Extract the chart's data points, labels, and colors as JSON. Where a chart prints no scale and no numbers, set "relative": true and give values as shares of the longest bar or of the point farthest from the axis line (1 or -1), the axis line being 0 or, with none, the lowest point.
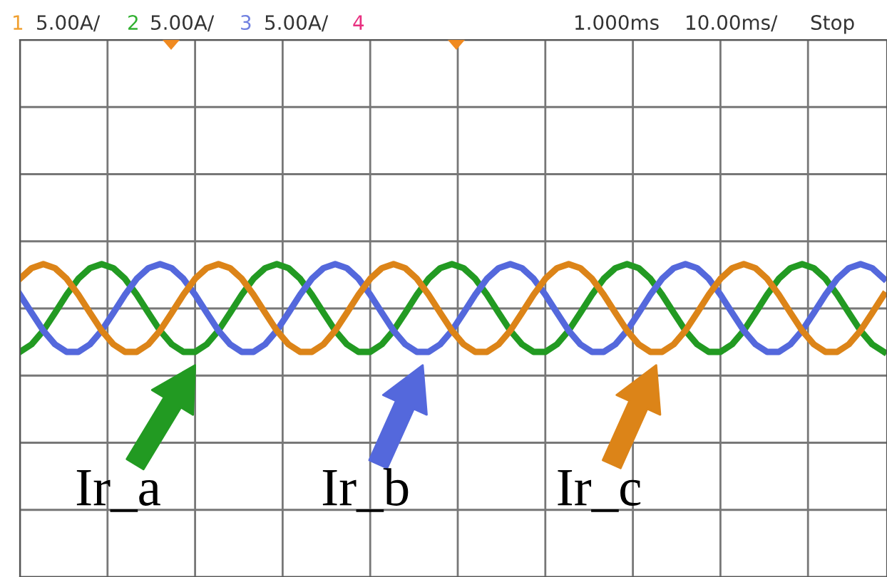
{
  "chart_data": {
    "type": "line",
    "relative": true,
    "grid": true,
    "legend": "bottom",
    "marker": "none",
    "line_style": "solid",
    "categories": [
      null,
      null,
      null,
      null,
      null,
      null,
      null,
      null,
      null,
      null,
      null,
      null,
      null,
      null,
      null,
      null,
      null,
      null,
      null,
      null,
      null,
      null,
      null,
      null,
      null,
      null,
      null,
      null,
      null,
      null,
      null,
      null,
      null,
      null,
      null,
      null,
      null,
      null,
      null,
      null,
      null,
      null,
      null,
      null,
      null,
      null,
      null,
      null,
      null,
      null,
      null,
      null,
      null,
      null,
      null,
      null,
      null,
      null,
      null,
      null,
      null,
      null,
      null,
      null,
      null,
      null,
      null,
      null,
      null,
      null,
      null,
      null,
      null,
      null,
      null
    ],
    "series": [
      {
        "name": "Ir_a",
        "color": "#229a22",
        "values": [
          -0.98,
          -0.81,
          -0.5,
          -0.1,
          0.31,
          0.67,
          0.91,
          1,
          0.91,
          0.67,
          0.31,
          -0.1,
          -0.5,
          -0.81,
          -0.98,
          -0.98,
          -0.81,
          -0.5,
          -0.1,
          0.31,
          0.67,
          0.91,
          1,
          0.91,
          0.67,
          0.31,
          -0.1,
          -0.5,
          -0.81,
          -0.98,
          -0.98,
          -0.81,
          -0.5,
          -0.1,
          0.31,
          0.67,
          0.91,
          1,
          0.91,
          0.67,
          0.31,
          -0.1,
          -0.5,
          -0.81,
          -0.98,
          -0.98,
          -0.81,
          -0.5,
          -0.1,
          0.31,
          0.67,
          0.91,
          1,
          0.91,
          0.67,
          0.31,
          -0.1,
          -0.5,
          -0.81,
          -0.98,
          -0.98,
          -0.81,
          -0.5,
          -0.1,
          0.31,
          0.67,
          0.91,
          1,
          0.91,
          0.67,
          0.31,
          -0.1,
          -0.5,
          -0.81,
          -0.98
        ]
      },
      {
        "name": "Ir_b",
        "color": "#5468dc",
        "values": [
          0.31,
          -0.1,
          -0.5,
          -0.81,
          -0.98,
          -0.98,
          -0.81,
          -0.5,
          -0.1,
          0.31,
          0.67,
          0.91,
          1,
          0.91,
          0.67,
          0.31,
          -0.1,
          -0.5,
          -0.81,
          -0.98,
          -0.98,
          -0.81,
          -0.5,
          -0.1,
          0.31,
          0.67,
          0.91,
          1,
          0.91,
          0.67,
          0.31,
          -0.1,
          -0.5,
          -0.81,
          -0.98,
          -0.98,
          -0.81,
          -0.5,
          -0.1,
          0.31,
          0.67,
          0.91,
          1,
          0.91,
          0.67,
          0.31,
          -0.1,
          -0.5,
          -0.81,
          -0.98,
          -0.98,
          -0.81,
          -0.5,
          -0.1,
          0.31,
          0.67,
          0.91,
          1,
          0.91,
          0.67,
          0.31,
          -0.1,
          -0.5,
          -0.81,
          -0.98,
          -0.98,
          -0.81,
          -0.5,
          -0.1,
          0.31,
          0.67,
          0.91,
          1,
          0.91,
          0.67
        ]
      },
      {
        "name": "Ir_c",
        "color": "#dc8418",
        "values": [
          0.67,
          0.91,
          1,
          0.91,
          0.67,
          0.31,
          -0.1,
          -0.5,
          -0.81,
          -0.98,
          -0.98,
          -0.81,
          -0.5,
          -0.1,
          0.31,
          0.67,
          0.91,
          1,
          0.91,
          0.67,
          0.31,
          -0.1,
          -0.5,
          -0.81,
          -0.98,
          -0.98,
          -0.81,
          -0.5,
          -0.1,
          0.31,
          0.67,
          0.91,
          1,
          0.91,
          0.67,
          0.31,
          -0.1,
          -0.5,
          -0.81,
          -0.98,
          -0.98,
          -0.81,
          -0.5,
          -0.1,
          0.31,
          0.67,
          0.91,
          1,
          0.91,
          0.67,
          0.31,
          -0.1,
          -0.5,
          -0.81,
          -0.98,
          -0.98,
          -0.81,
          -0.5,
          -0.1,
          0.31,
          0.67,
          0.91,
          1,
          0.91,
          0.67,
          0.31,
          -0.1,
          -0.5,
          -0.81,
          -0.98,
          -0.98,
          -0.81,
          -0.5,
          -0.1,
          0.31
        ]
      }
    ],
    "annotations": [
      "1",
      "5.00A/",
      "2",
      "5.00A/",
      "3",
      "5.00A/",
      "4",
      "1.000ms",
      "10.00ms/",
      "Stop"
    ]
  }
}
